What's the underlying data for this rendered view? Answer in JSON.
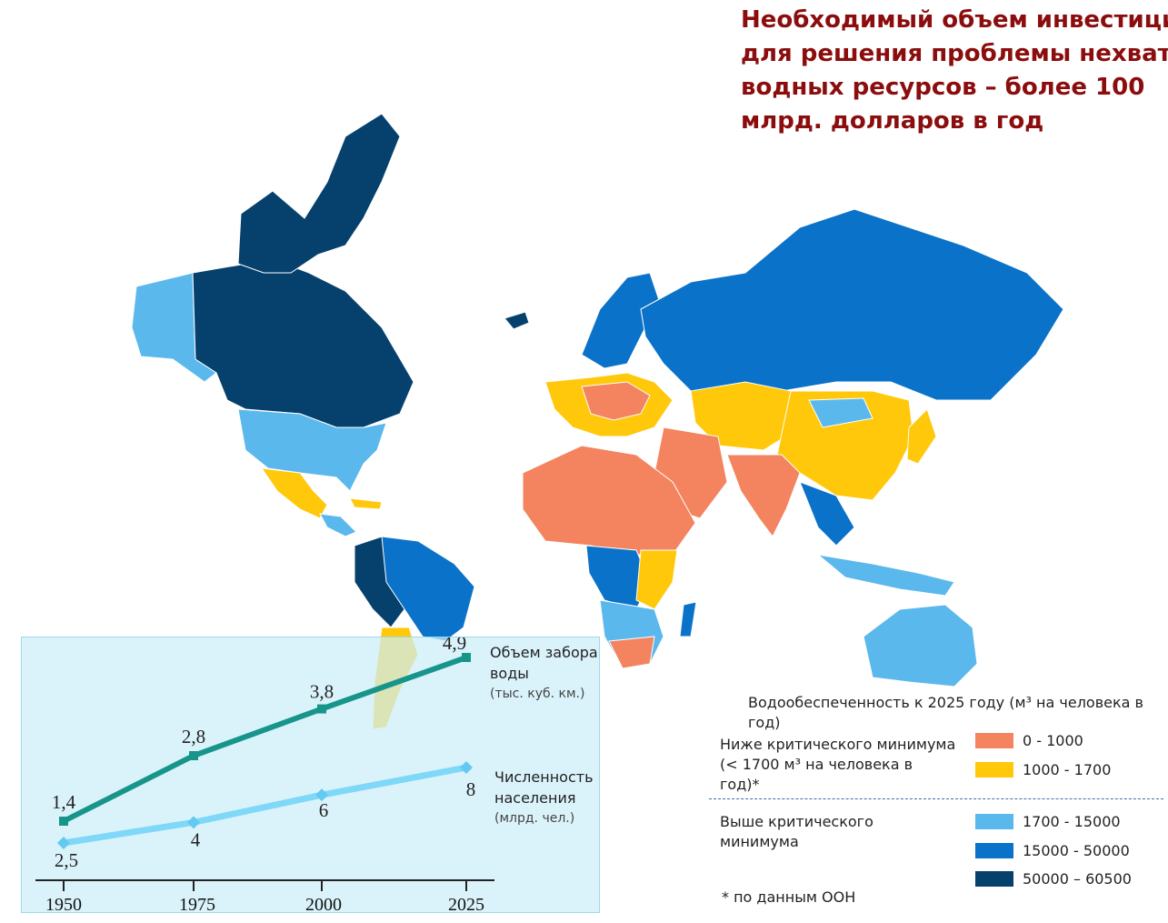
{
  "title": {
    "lines": [
      "Необходимый объем инвестиций",
      "для решения проблемы нехватки",
      "водных ресурсов – более 100",
      "млрд. долларов в год"
    ]
  },
  "map_colors": {
    "very_low": "#f4835f",
    "low": "#ffc80a",
    "medium": "#5bb8ec",
    "high": "#0a72c8",
    "very_high": "#06416e",
    "no_data": "#8a8a8a"
  },
  "legend": {
    "title": "Водообеспеченность к 2025 году (м³ на человека в год)",
    "group_below": "Ниже критического минимума (< 1700 м³ на человека в год)*",
    "group_above": "Выше критического минимума",
    "footnote": "* по данным ООН",
    "items": [
      {
        "label": "0 - 1000",
        "color": "#f4835f"
      },
      {
        "label": "1000 - 1700",
        "color": "#ffc80a"
      },
      {
        "label": "1700 - 15000",
        "color": "#5bb8ec"
      },
      {
        "label": "15000 - 50000",
        "color": "#0a72c8"
      },
      {
        "label": "50000 – 60500",
        "color": "#06416e"
      }
    ]
  },
  "chart_data": {
    "type": "line",
    "x": [
      1950,
      1975,
      2000,
      2025
    ],
    "x_tick_labels": [
      "1950",
      "1975",
      "2000",
      "2025"
    ],
    "series": [
      {
        "name": "Объем забора воды",
        "unit": "(тыс. куб. км.)",
        "values": [
          1.4,
          2.8,
          3.8,
          4.9
        ],
        "value_labels": [
          "1,4",
          "2,8",
          "3,8",
          "4,9"
        ],
        "color": "#17958a"
      },
      {
        "name": "Численность населения",
        "unit": "(млрд. чел.)",
        "values": [
          2.5,
          4,
          6,
          8
        ],
        "value_labels": [
          "2,5",
          "4",
          "6",
          "8"
        ],
        "color": "#7fd8f8"
      }
    ]
  }
}
